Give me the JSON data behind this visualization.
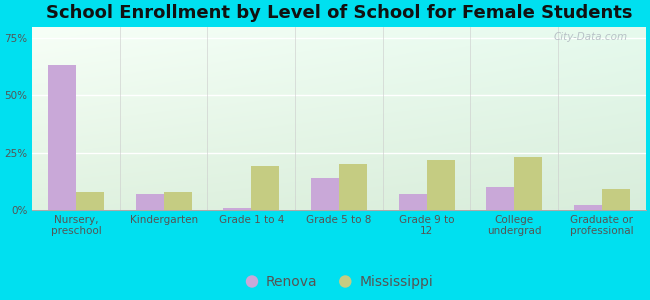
{
  "title": "School Enrollment by Level of School for Female Students",
  "categories": [
    "Nursery,\npreschool",
    "Kindergarten",
    "Grade 1 to 4",
    "Grade 5 to 8",
    "Grade 9 to\n12",
    "College\nundergrad",
    "Graduate or\nprofessional"
  ],
  "renova": [
    63,
    7,
    1,
    14,
    7,
    10,
    2
  ],
  "mississippi": [
    8,
    8,
    19,
    20,
    22,
    23,
    9
  ],
  "renova_color": "#c9a8d8",
  "mississippi_color": "#c5cc82",
  "background_outer": "#00e0f0",
  "ylim": [
    0,
    80
  ],
  "yticks": [
    0,
    25,
    50,
    75
  ],
  "ytick_labels": [
    "0%",
    "25%",
    "50%",
    "75%"
  ],
  "bar_width": 0.32,
  "title_fontsize": 13,
  "tick_fontsize": 7.5,
  "legend_fontsize": 10,
  "watermark": "City-Data.com",
  "grad_colors": [
    "#e8f5e0",
    "#f8fdf5",
    "#d0eae8"
  ],
  "grid_color": "#ffffff",
  "axis_color": "#aaaaaa",
  "text_color": "#555555"
}
